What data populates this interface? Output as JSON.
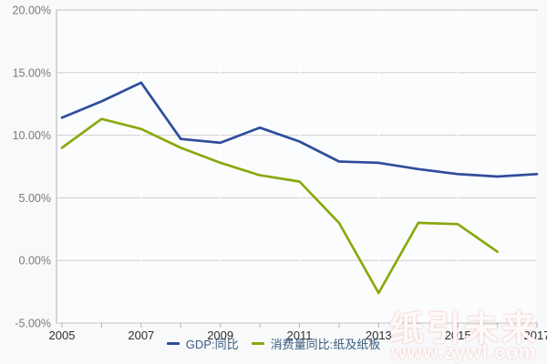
{
  "colors": {
    "background": "#f8f9fb",
    "plot_background": "#fbfcfe",
    "grid_line": "#cfcfcf",
    "vertical_grid_line": "#ffffff",
    "plot_border": "#bdbdbd",
    "tick_mark": "#b3b3b3",
    "y_axis_label": "#7a7a7a",
    "x_axis_label": "#2e2e2e",
    "legend_text": "#3a5a7e",
    "gdp_line": "#2e4d9b",
    "paper_line": "#8ba80d"
  },
  "legend": {
    "items": [
      {
        "label": "GDP:同比",
        "color": "#2e4d9b"
      },
      {
        "label": "消费量同比:纸及纸板",
        "color": "#8ba80d"
      }
    ]
  },
  "watermark": {
    "title": "纸引未来",
    "url": "www.zywl.com"
  },
  "chart_data": {
    "type": "line",
    "x": [
      2005,
      2006,
      2007,
      2008,
      2009,
      2010,
      2011,
      2012,
      2013,
      2014,
      2015,
      2016,
      2017
    ],
    "x_tick_years": [
      2005,
      2007,
      2009,
      2011,
      2013,
      2015,
      2017
    ],
    "x_tick_labels": [
      "2005",
      "2007",
      "2009",
      "2011",
      "2013",
      "2015",
      "2017"
    ],
    "series": [
      {
        "name": "GDP:同比",
        "color": "#2e4d9b",
        "values": [
          11.4,
          12.7,
          14.2,
          9.7,
          9.4,
          10.6,
          9.5,
          7.9,
          7.8,
          7.3,
          6.9,
          6.7,
          6.9
        ]
      },
      {
        "name": "消费量同比:纸及纸板",
        "color": "#8ba80d",
        "values": [
          9.0,
          11.3,
          10.5,
          9.0,
          7.8,
          6.8,
          6.3,
          3.0,
          -2.6,
          3.0,
          2.9,
          0.7,
          null
        ]
      }
    ],
    "ylim": [
      -5,
      20
    ],
    "y_ticks": [
      20,
      15,
      10,
      5,
      0,
      -5
    ],
    "y_tick_labels": [
      "20.00%",
      "15.00%",
      "10.00%",
      "5.00%",
      "0.00%",
      "-5.00%"
    ],
    "grid": true,
    "legend_position": "bottom",
    "title": "",
    "xlabel": "",
    "ylabel": ""
  }
}
